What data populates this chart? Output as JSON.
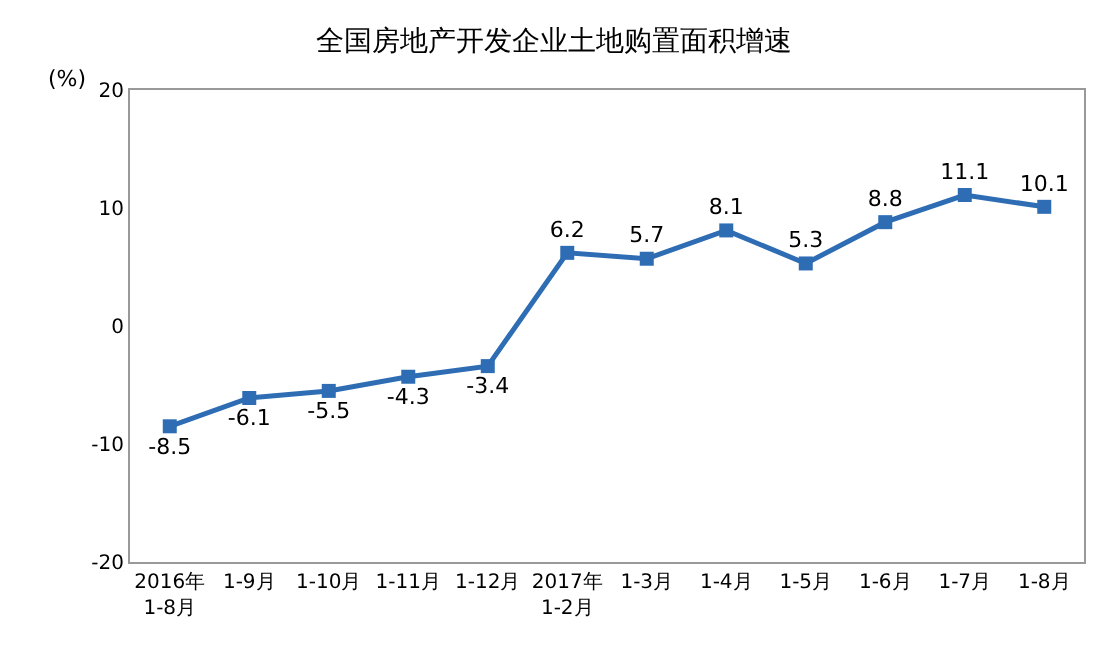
{
  "chart_data": {
    "type": "line",
    "title": "全国房地产开发企业土地购置面积增速",
    "ylabel": "(%)",
    "categories": [
      "2016年\n1-8月",
      "1-9月",
      "1-10月",
      "1-11月",
      "1-12月",
      "2017年\n1-2月",
      "1-3月",
      "1-4月",
      "1-5月",
      "1-6月",
      "1-7月",
      "1-8月"
    ],
    "series": [
      {
        "color": "#2e6db4",
        "values": [
          -8.5,
          -6.1,
          -5.5,
          -4.3,
          -3.4,
          6.2,
          5.7,
          8.1,
          5.3,
          8.8,
          11.1,
          10.1
        ]
      }
    ],
    "ylim": [
      -20,
      20
    ],
    "yticks": [
      -20,
      -10,
      0,
      10,
      20
    ],
    "legend": false,
    "marker": "square",
    "line_style": "solid",
    "data_labels": true
  }
}
